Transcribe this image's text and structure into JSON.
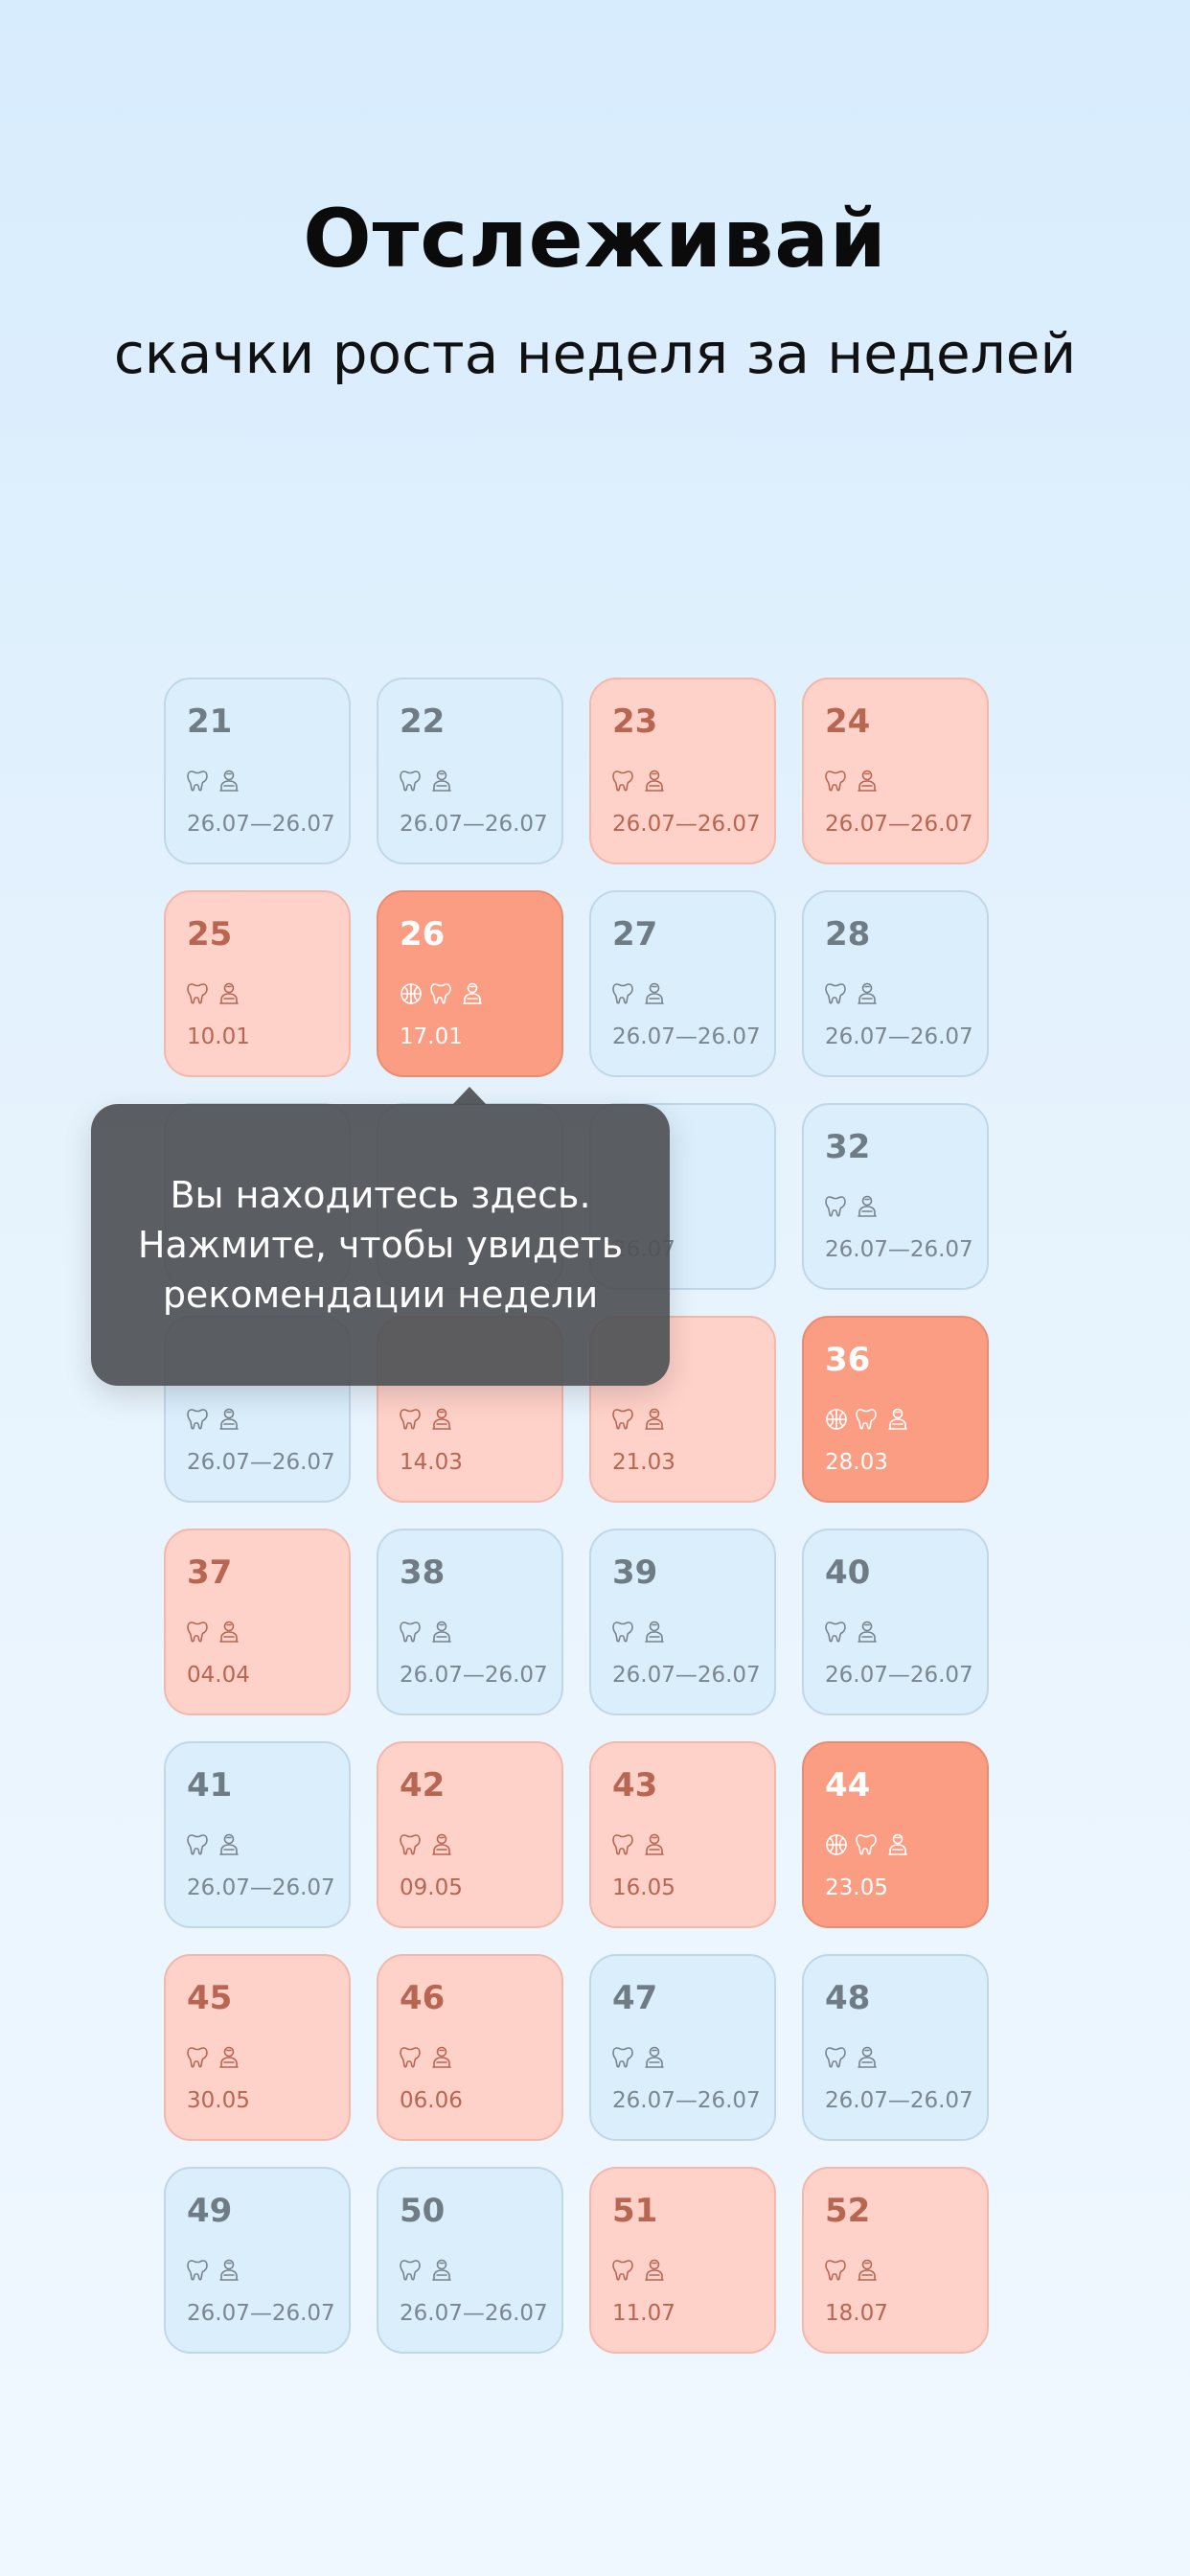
{
  "header": {
    "title": "Отслеживай",
    "subtitle": "скачки роста неделя за неделей"
  },
  "tooltip": {
    "text": "Вы находитесь здесь. Нажмите, чтобы увидеть рекомендации недели"
  },
  "colors": {
    "blue_card": "#daeefc",
    "pink_card": "#ffd2c9",
    "hot_card": "#fa9d82",
    "tooltip_bg": "#505256"
  },
  "weeks": [
    {
      "number": "21",
      "date": "26.07—26.07",
      "state": "blue",
      "icons": [
        "tooth-icon",
        "baby-icon"
      ]
    },
    {
      "number": "22",
      "date": "26.07—26.07",
      "state": "blue",
      "icons": [
        "tooth-icon",
        "baby-icon"
      ]
    },
    {
      "number": "23",
      "date": "26.07—26.07",
      "state": "pink",
      "icons": [
        "tooth-icon",
        "baby-icon"
      ]
    },
    {
      "number": "24",
      "date": "26.07—26.07",
      "state": "pink",
      "icons": [
        "tooth-icon",
        "baby-icon"
      ]
    },
    {
      "number": "25",
      "date": "10.01",
      "state": "pink",
      "icons": [
        "tooth-icon",
        "baby-icon"
      ]
    },
    {
      "number": "26",
      "date": "17.01",
      "state": "hot",
      "icons": [
        "brain-icon",
        "tooth-icon",
        "baby-icon"
      ]
    },
    {
      "number": "27",
      "date": "26.07—26.07",
      "state": "blue",
      "icons": [
        "tooth-icon",
        "baby-icon"
      ]
    },
    {
      "number": "28",
      "date": "26.07—26.07",
      "state": "blue",
      "icons": [
        "tooth-icon",
        "baby-icon"
      ]
    },
    {
      "number": "",
      "date": "",
      "state": "blue",
      "icons": []
    },
    {
      "number": "",
      "date": "",
      "state": "blue",
      "icons": []
    },
    {
      "number": "",
      "date": "26.07",
      "state": "blue",
      "icons": []
    },
    {
      "number": "32",
      "date": "26.07—26.07",
      "state": "blue",
      "icons": [
        "tooth-icon",
        "baby-icon"
      ]
    },
    {
      "number": "",
      "date": "26.07—26.07",
      "state": "blue",
      "icons": [
        "tooth-icon",
        "baby-icon"
      ]
    },
    {
      "number": "",
      "date": "14.03",
      "state": "pink",
      "icons": [
        "tooth-icon",
        "baby-icon"
      ]
    },
    {
      "number": "",
      "date": "21.03",
      "state": "pink",
      "icons": [
        "tooth-icon",
        "baby-icon"
      ]
    },
    {
      "number": "36",
      "date": "28.03",
      "state": "hot",
      "icons": [
        "brain-icon",
        "tooth-icon",
        "baby-icon"
      ]
    },
    {
      "number": "37",
      "date": "04.04",
      "state": "pink",
      "icons": [
        "tooth-icon",
        "baby-icon"
      ]
    },
    {
      "number": "38",
      "date": "26.07—26.07",
      "state": "blue",
      "icons": [
        "tooth-icon",
        "baby-icon"
      ]
    },
    {
      "number": "39",
      "date": "26.07—26.07",
      "state": "blue",
      "icons": [
        "tooth-icon",
        "baby-icon"
      ]
    },
    {
      "number": "40",
      "date": "26.07—26.07",
      "state": "blue",
      "icons": [
        "tooth-icon",
        "baby-icon"
      ]
    },
    {
      "number": "41",
      "date": "26.07—26.07",
      "state": "blue",
      "icons": [
        "tooth-icon",
        "baby-icon"
      ]
    },
    {
      "number": "42",
      "date": "09.05",
      "state": "pink",
      "icons": [
        "tooth-icon",
        "baby-icon"
      ]
    },
    {
      "number": "43",
      "date": "16.05",
      "state": "pink",
      "icons": [
        "tooth-icon",
        "baby-icon"
      ]
    },
    {
      "number": "44",
      "date": "23.05",
      "state": "hot",
      "icons": [
        "brain-icon",
        "tooth-icon",
        "baby-icon"
      ]
    },
    {
      "number": "45",
      "date": "30.05",
      "state": "pink",
      "icons": [
        "tooth-icon",
        "baby-icon"
      ]
    },
    {
      "number": "46",
      "date": "06.06",
      "state": "pink",
      "icons": [
        "tooth-icon",
        "baby-icon"
      ]
    },
    {
      "number": "47",
      "date": "26.07—26.07",
      "state": "blue",
      "icons": [
        "tooth-icon",
        "baby-icon"
      ]
    },
    {
      "number": "48",
      "date": "26.07—26.07",
      "state": "blue",
      "icons": [
        "tooth-icon",
        "baby-icon"
      ]
    },
    {
      "number": "49",
      "date": "26.07—26.07",
      "state": "blue",
      "icons": [
        "tooth-icon",
        "baby-icon"
      ]
    },
    {
      "number": "50",
      "date": "26.07—26.07",
      "state": "blue",
      "icons": [
        "tooth-icon",
        "baby-icon"
      ]
    },
    {
      "number": "51",
      "date": "11.07",
      "state": "pink",
      "icons": [
        "tooth-icon",
        "baby-icon"
      ]
    },
    {
      "number": "52",
      "date": "18.07",
      "state": "pink",
      "icons": [
        "tooth-icon",
        "baby-icon"
      ]
    }
  ]
}
